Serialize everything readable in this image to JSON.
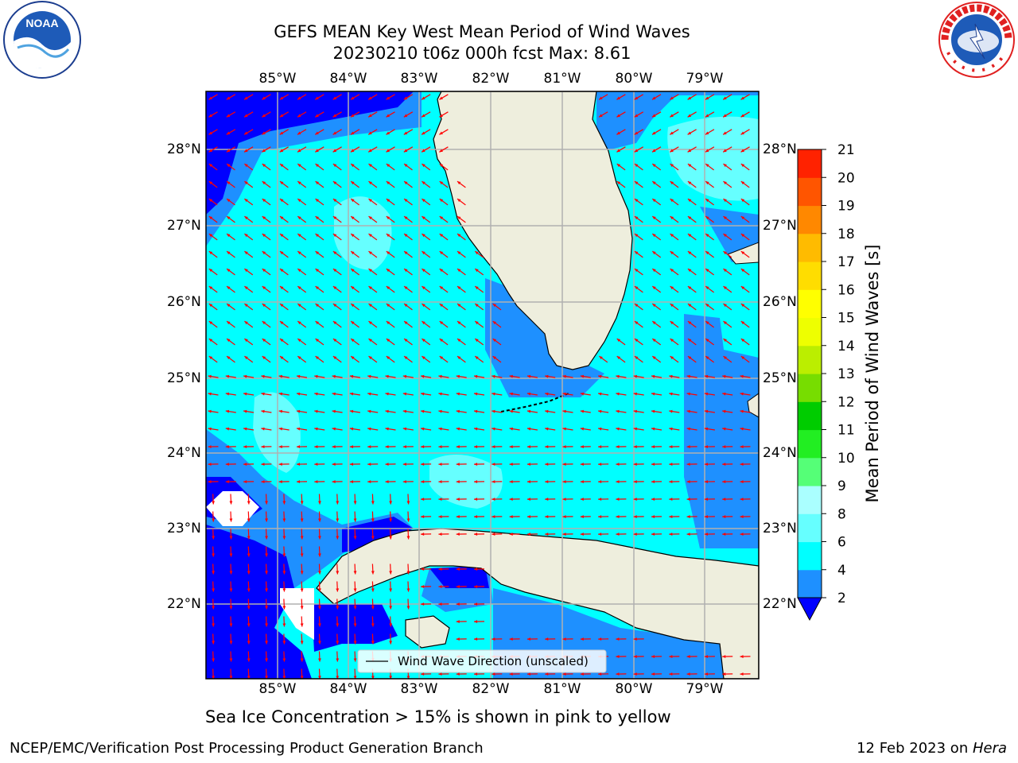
{
  "header": {
    "title_line1": "GEFS MEAN Key West Mean Period of Wind Waves",
    "title_line2": "20230210 t06z 000h fcst   Max: 8.61"
  },
  "logos": {
    "left_text": "NOAA",
    "right_text": "NATIONAL WEATHER SERVICE"
  },
  "map": {
    "lon_labels": [
      "85°W",
      "84°W",
      "83°W",
      "82°W",
      "81°W",
      "80°W",
      "79°W"
    ],
    "lat_labels": [
      "28°N",
      "27°N",
      "26°N",
      "25°N",
      "24°N",
      "23°N",
      "22°N"
    ],
    "legend_label": "Wind Wave Direction (unscaled)",
    "colors": {
      "land": "#eeeedd",
      "arrow": "#ff0000",
      "grid": "#b0b0b0",
      "coast": "#000000"
    }
  },
  "colorbar": {
    "title": "Mean Period of Wind Waves [s]",
    "ticks": [
      "2",
      "4",
      "6",
      "8",
      "9",
      "10",
      "11",
      "12",
      "13",
      "14",
      "15",
      "16",
      "17",
      "18",
      "19",
      "20",
      "21"
    ],
    "colors": [
      "#0000ff",
      "#1e90ff",
      "#00ffff",
      "#66ffff",
      "#aaffff",
      "#55ff77",
      "#22ee22",
      "#00cc00",
      "#77dd00",
      "#bbee00",
      "#eeff00",
      "#ffff00",
      "#ffdd00",
      "#ffbb00",
      "#ff8800",
      "#ff5500",
      "#ff2200",
      "#ff0000"
    ]
  },
  "caption": "Sea Ice Concentration > 15% is shown in pink to yellow",
  "footer": {
    "left": "NCEP/EMC/Verification Post Processing Product Generation Branch",
    "date": "12 Feb 2023 on ",
    "host": "Hera"
  }
}
